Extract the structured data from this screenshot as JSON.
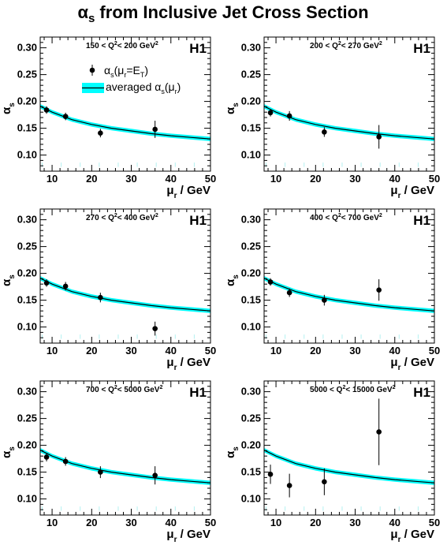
{
  "title": {
    "symbol": "α",
    "subscript": "s",
    "rest": " from Inclusive Jet Cross Section"
  },
  "legend": {
    "points": {
      "symbol": "α",
      "sub": "s",
      "open": "(μ",
      "sub2": "r",
      "close": "=E",
      "sub3": "T",
      "end": ")"
    },
    "band": {
      "text": "averaged α",
      "sub": "s",
      "open": "(μ",
      "sub2": "r",
      "close": ")"
    }
  },
  "colors": {
    "band": "#00ffff",
    "curve": "#000000",
    "markers": "#000000",
    "guide_lines": "#b3f0f0"
  },
  "chart_data": [
    {
      "type": "scatter",
      "experiment": "H1",
      "q2_range": {
        "low": "150",
        "high": "200",
        "unit": "GeV"
      },
      "xlabel": {
        "sym": "μ",
        "sub": "r",
        "rest": " / GeV"
      },
      "ylabel": {
        "sym": "α",
        "sub": "s"
      },
      "xlim": [
        7,
        50
      ],
      "ylim": [
        0.07,
        0.32
      ],
      "xticks": [
        10,
        20,
        30,
        40,
        50
      ],
      "yticks": [
        "0.10",
        "0.15",
        "0.20",
        "0.25",
        "0.30"
      ],
      "series": [
        {
          "name": "αs(μr=ET)",
          "x": [
            8.6,
            13.4,
            22.2,
            36.0
          ],
          "y": [
            0.184,
            0.172,
            0.141,
            0.148
          ],
          "yerr": [
            0.007,
            0.007,
            0.008,
            0.016
          ]
        }
      ],
      "band": {
        "type": "averaged αs(μr)",
        "x": [
          7,
          10,
          15,
          20,
          25,
          30,
          35,
          40,
          45,
          50
        ],
        "y": [
          0.191,
          0.18,
          0.166,
          0.157,
          0.15,
          0.145,
          0.14,
          0.136,
          0.133,
          0.13
        ],
        "halfwidth": 0.004
      }
    },
    {
      "type": "scatter",
      "experiment": "H1",
      "q2_range": {
        "low": "200",
        "high": "270",
        "unit": "GeV"
      },
      "xlabel": {
        "sym": "μ",
        "sub": "r",
        "rest": " / GeV"
      },
      "ylabel": {
        "sym": "α",
        "sub": "s"
      },
      "xlim": [
        7,
        50
      ],
      "ylim": [
        0.07,
        0.32
      ],
      "xticks": [
        10,
        20,
        30,
        40,
        50
      ],
      "yticks": [
        "0.10",
        "0.15",
        "0.20",
        "0.25",
        "0.30"
      ],
      "series": [
        {
          "name": "αs(μr=ET)",
          "x": [
            8.6,
            13.4,
            22.2,
            36.0
          ],
          "y": [
            0.179,
            0.173,
            0.143,
            0.134
          ],
          "yerr": [
            0.007,
            0.009,
            0.009,
            0.022
          ]
        }
      ],
      "band": {
        "type": "averaged αs(μr)",
        "x": [
          7,
          10,
          15,
          20,
          25,
          30,
          35,
          40,
          45,
          50
        ],
        "y": [
          0.191,
          0.18,
          0.166,
          0.157,
          0.15,
          0.145,
          0.14,
          0.136,
          0.133,
          0.13
        ],
        "halfwidth": 0.004
      }
    },
    {
      "type": "scatter",
      "experiment": "H1",
      "q2_range": {
        "low": "270",
        "high": "400",
        "unit": "GeV"
      },
      "xlabel": {
        "sym": "μ",
        "sub": "r",
        "rest": " / GeV"
      },
      "ylabel": {
        "sym": "α",
        "sub": "s"
      },
      "xlim": [
        7,
        50
      ],
      "ylim": [
        0.07,
        0.32
      ],
      "xticks": [
        10,
        20,
        30,
        40,
        50
      ],
      "yticks": [
        "0.10",
        "0.15",
        "0.20",
        "0.25",
        "0.30"
      ],
      "series": [
        {
          "name": "αs(μr=ET)",
          "x": [
            8.6,
            13.4,
            22.2,
            36.0
          ],
          "y": [
            0.182,
            0.176,
            0.155,
            0.097
          ],
          "yerr": [
            0.007,
            0.008,
            0.009,
            0.013
          ]
        }
      ],
      "band": {
        "type": "averaged αs(μr)",
        "x": [
          7,
          10,
          15,
          20,
          25,
          30,
          35,
          40,
          45,
          50
        ],
        "y": [
          0.191,
          0.18,
          0.166,
          0.157,
          0.15,
          0.145,
          0.14,
          0.136,
          0.133,
          0.13
        ],
        "halfwidth": 0.004
      }
    },
    {
      "type": "scatter",
      "experiment": "H1",
      "q2_range": {
        "low": "400",
        "high": "700",
        "unit": "GeV"
      },
      "xlabel": {
        "sym": "μ",
        "sub": "r",
        "rest": " / GeV"
      },
      "ylabel": {
        "sym": "α",
        "sub": "s"
      },
      "xlim": [
        7,
        50
      ],
      "ylim": [
        0.07,
        0.32
      ],
      "xticks": [
        10,
        20,
        30,
        40,
        50
      ],
      "yticks": [
        "0.10",
        "0.15",
        "0.20",
        "0.25",
        "0.30"
      ],
      "series": [
        {
          "name": "αs(μr=ET)",
          "x": [
            8.6,
            13.4,
            22.2,
            36.0
          ],
          "y": [
            0.184,
            0.164,
            0.15,
            0.169
          ],
          "yerr": [
            0.007,
            0.008,
            0.01,
            0.02
          ]
        }
      ],
      "band": {
        "type": "averaged αs(μr)",
        "x": [
          7,
          10,
          15,
          20,
          25,
          30,
          35,
          40,
          45,
          50
        ],
        "y": [
          0.191,
          0.18,
          0.166,
          0.157,
          0.15,
          0.145,
          0.14,
          0.136,
          0.133,
          0.13
        ],
        "halfwidth": 0.004
      }
    },
    {
      "type": "scatter",
      "experiment": "H1",
      "q2_range": {
        "low": "700",
        "high": "5000",
        "unit": "GeV"
      },
      "xlabel": {
        "sym": "μ",
        "sub": "r",
        "rest": " / GeV"
      },
      "ylabel": {
        "sym": "α",
        "sub": "s"
      },
      "xlim": [
        7,
        50
      ],
      "ylim": [
        0.07,
        0.32
      ],
      "xticks": [
        10,
        20,
        30,
        40,
        50
      ],
      "yticks": [
        "0.10",
        "0.15",
        "0.20",
        "0.25",
        "0.30"
      ],
      "series": [
        {
          "name": "αs(μr=ET)",
          "x": [
            8.6,
            13.4,
            22.2,
            36.0
          ],
          "y": [
            0.178,
            0.17,
            0.15,
            0.144
          ],
          "yerr": [
            0.008,
            0.008,
            0.011,
            0.017
          ]
        }
      ],
      "band": {
        "type": "averaged αs(μr)",
        "x": [
          7,
          10,
          15,
          20,
          25,
          30,
          35,
          40,
          45,
          50
        ],
        "y": [
          0.191,
          0.18,
          0.166,
          0.157,
          0.15,
          0.145,
          0.14,
          0.136,
          0.133,
          0.13
        ],
        "halfwidth": 0.004
      }
    },
    {
      "type": "scatter",
      "experiment": "H1",
      "q2_range": {
        "low": "5000",
        "high": "15000",
        "unit": "GeV"
      },
      "xlabel": {
        "sym": "μ",
        "sub": "r",
        "rest": " / GeV"
      },
      "ylabel": {
        "sym": "α",
        "sub": "s"
      },
      "xlim": [
        7,
        50
      ],
      "ylim": [
        0.07,
        0.32
      ],
      "xticks": [
        10,
        20,
        30,
        40,
        50
      ],
      "yticks": [
        "0.10",
        "0.15",
        "0.20",
        "0.25",
        "0.30"
      ],
      "series": [
        {
          "name": "αs(μr=ET)",
          "x": [
            8.6,
            13.4,
            22.2,
            36.0
          ],
          "y": [
            0.146,
            0.125,
            0.132,
            0.225
          ],
          "yerr": [
            0.018,
            0.022,
            0.025,
            0.062
          ]
        }
      ],
      "band": {
        "type": "averaged αs(μr)",
        "x": [
          7,
          10,
          15,
          20,
          25,
          30,
          35,
          40,
          45,
          50
        ],
        "y": [
          0.191,
          0.18,
          0.166,
          0.157,
          0.15,
          0.145,
          0.14,
          0.136,
          0.133,
          0.13
        ],
        "halfwidth": 0.004
      }
    }
  ]
}
